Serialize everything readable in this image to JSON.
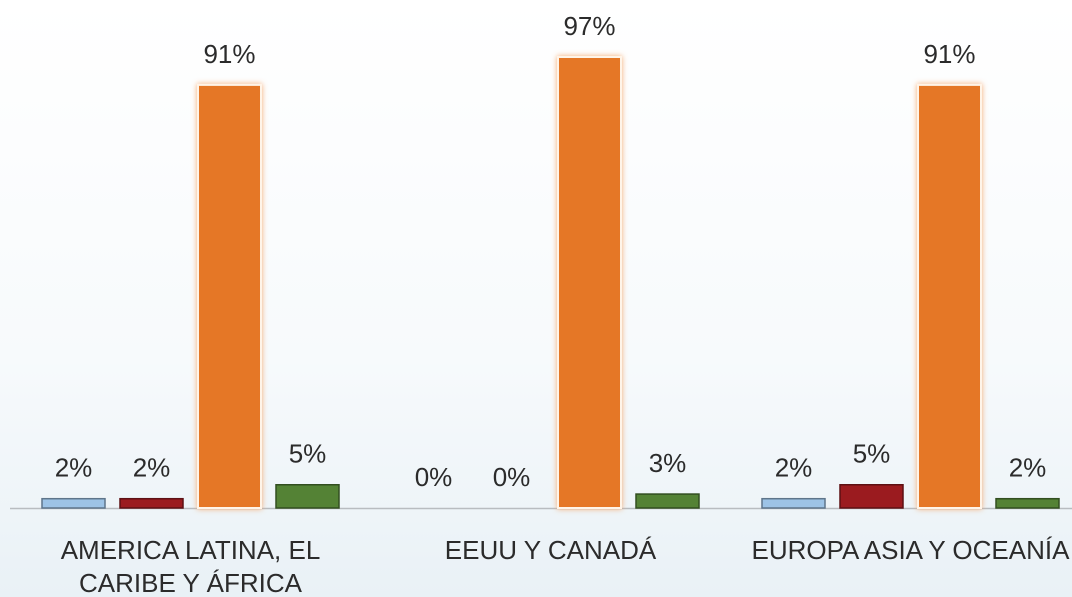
{
  "chart_data": {
    "type": "bar",
    "categories": [
      "AMERICA LATINA, EL CARIBE Y ÁFRICA",
      "EEUU Y CANADÁ",
      "EUROPA ASIA Y OCEANÍA"
    ],
    "series": [
      {
        "color": "#9dc3e6",
        "values": [
          2,
          0,
          2
        ],
        "value_labels": [
          "2%",
          "0%",
          "2%"
        ]
      },
      {
        "color": "#9b1b1f",
        "values": [
          2,
          0,
          5
        ],
        "value_labels": [
          "2%",
          "0%",
          "5%"
        ]
      },
      {
        "color": "#e57726",
        "values": [
          91,
          97,
          91
        ],
        "value_labels": [
          "91%",
          "97%",
          "91%"
        ]
      },
      {
        "color": "#548235",
        "values": [
          5,
          3,
          2
        ],
        "value_labels": [
          "5%",
          "3%",
          "2%"
        ]
      }
    ]
  }
}
